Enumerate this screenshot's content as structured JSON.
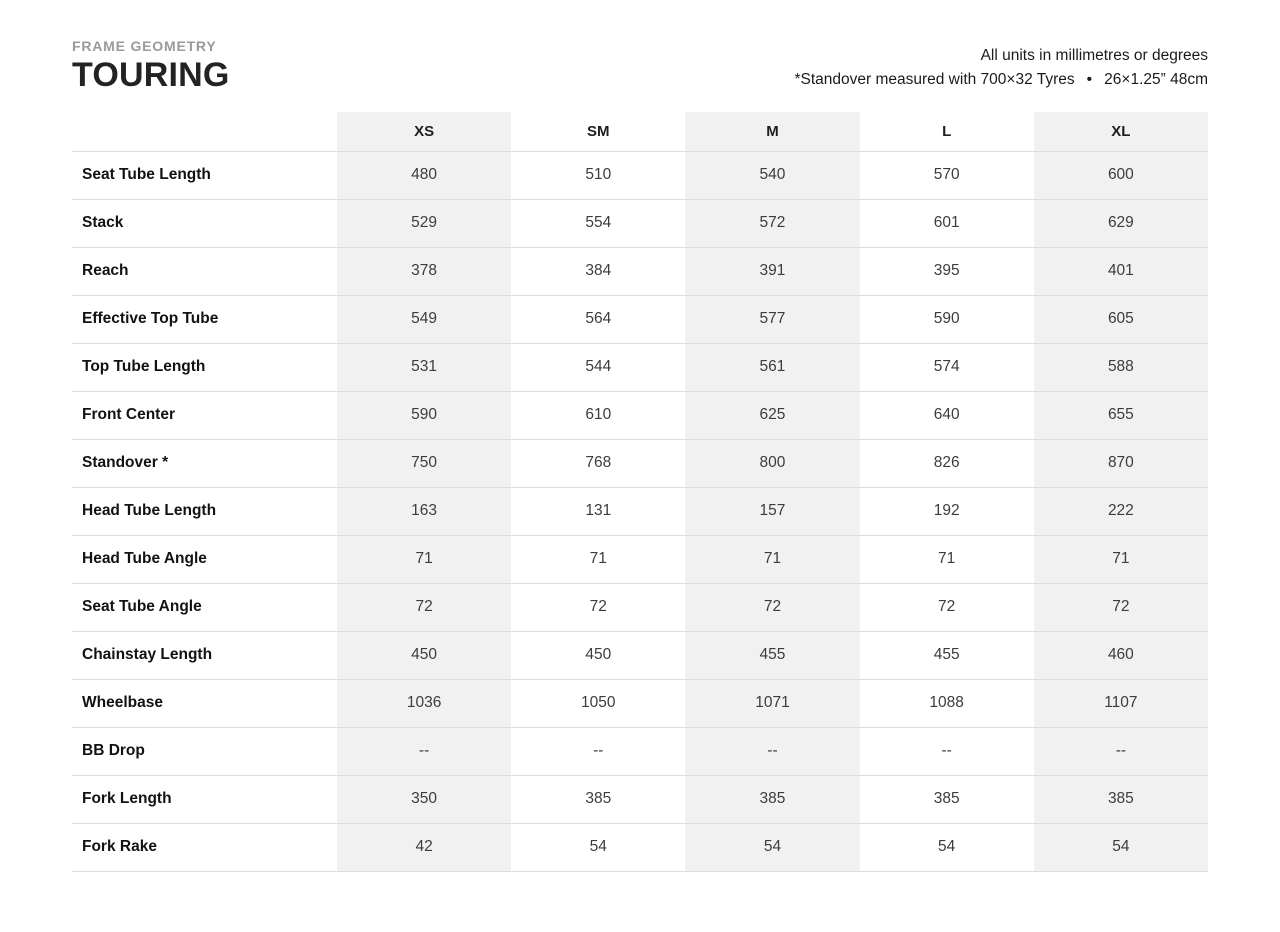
{
  "header": {
    "eyebrow": "FRAME GEOMETRY",
    "title": "TOURING"
  },
  "chart_data": {
    "type": "table",
    "category_label": "FRAME GEOMETRY",
    "title": "TOURING",
    "notes": [
      "All units in millimetres or degrees",
      "*Standover measured with 700×32 Tyres  •  26×1.25” 48cm"
    ],
    "columns": [
      "XS",
      "SM",
      "M",
      "L",
      "XL"
    ],
    "shaded_column_indexes": [
      0,
      2,
      4
    ],
    "rows": [
      {
        "label": "Seat Tube Length",
        "values": [
          "480",
          "510",
          "540",
          "570",
          "600"
        ]
      },
      {
        "label": "Stack",
        "values": [
          "529",
          "554",
          "572",
          "601",
          "629"
        ]
      },
      {
        "label": "Reach",
        "values": [
          "378",
          "384",
          "391",
          "395",
          "401"
        ]
      },
      {
        "label": "Effective Top Tube",
        "values": [
          "549",
          "564",
          "577",
          "590",
          "605"
        ]
      },
      {
        "label": "Top Tube Length",
        "values": [
          "531",
          "544",
          "561",
          "574",
          "588"
        ]
      },
      {
        "label": "Front Center",
        "values": [
          "590",
          "610",
          "625",
          "640",
          "655"
        ]
      },
      {
        "label": "Standover *",
        "values": [
          "750",
          "768",
          "800",
          "826",
          "870"
        ]
      },
      {
        "label": "Head Tube Length",
        "values": [
          "163",
          "131",
          "157",
          "192",
          "222"
        ]
      },
      {
        "label": "Head Tube Angle",
        "values": [
          "71",
          "71",
          "71",
          "71",
          "71"
        ]
      },
      {
        "label": "Seat Tube Angle",
        "values": [
          "72",
          "72",
          "72",
          "72",
          "72"
        ]
      },
      {
        "label": "Chainstay Length",
        "values": [
          "450",
          "450",
          "455",
          "455",
          "460"
        ]
      },
      {
        "label": "Wheelbase",
        "values": [
          "1036",
          "1050",
          "1071",
          "1088",
          "1107"
        ]
      },
      {
        "label": "BB Drop",
        "values": [
          "--",
          "--",
          "--",
          "--",
          "--"
        ]
      },
      {
        "label": "Fork Length",
        "values": [
          "350",
          "385",
          "385",
          "385",
          "385"
        ]
      },
      {
        "label": "Fork Rake",
        "values": [
          "42",
          "54",
          "54",
          "54",
          "54"
        ]
      }
    ]
  },
  "colors": {
    "shaded_column_bg": "#f1f1f2",
    "row_border": "#dcdcdc",
    "eyebrow_text": "#9a9a9a",
    "title_text": "#232323",
    "note_text": "#1b1b1b",
    "header_text": "#1e1e1e",
    "label_text": "#121212",
    "value_text": "#3c3c3c"
  }
}
